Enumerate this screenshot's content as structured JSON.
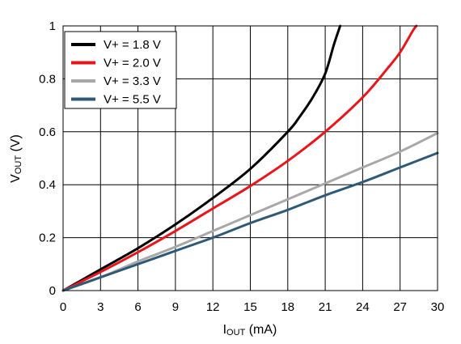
{
  "chart_data": {
    "type": "line",
    "xlabel": {
      "main": "I",
      "sub": "OUT",
      "unit": " (mA)"
    },
    "ylabel": {
      "main": "V",
      "sub": "OUT",
      "unit": " (V)"
    },
    "xlim": [
      0,
      30
    ],
    "ylim": [
      0,
      1
    ],
    "xticks": [
      0,
      3,
      6,
      9,
      12,
      15,
      18,
      21,
      24,
      27,
      30
    ],
    "yticks": [
      0,
      0.2,
      0.4,
      0.6,
      0.8,
      1
    ],
    "ytick_labels": [
      "0",
      "0.2",
      "0.4",
      "0.6",
      "0.8",
      "1"
    ],
    "grid": true,
    "legend_position": "top-left",
    "series": [
      {
        "name": "V+ = 1.8 V",
        "color": "#000000",
        "points": [
          [
            0,
            0
          ],
          [
            3,
            0.08
          ],
          [
            6,
            0.16
          ],
          [
            9,
            0.25
          ],
          [
            12,
            0.35
          ],
          [
            15,
            0.46
          ],
          [
            18,
            0.6
          ],
          [
            19,
            0.66
          ],
          [
            20,
            0.73
          ],
          [
            21,
            0.82
          ],
          [
            21.7,
            0.93
          ],
          [
            22.2,
            1.0
          ]
        ]
      },
      {
        "name": "V+ = 2.0 V",
        "color": "#e8161a",
        "points": [
          [
            0,
            0
          ],
          [
            3,
            0.07
          ],
          [
            6,
            0.145
          ],
          [
            9,
            0.225
          ],
          [
            12,
            0.31
          ],
          [
            15,
            0.395
          ],
          [
            18,
            0.49
          ],
          [
            21,
            0.6
          ],
          [
            24,
            0.73
          ],
          [
            26,
            0.84
          ],
          [
            27,
            0.9
          ],
          [
            28,
            0.98
          ],
          [
            28.3,
            1.0
          ]
        ]
      },
      {
        "name": "V+ = 3.3 V",
        "color": "#a8a8a8",
        "points": [
          [
            0,
            0
          ],
          [
            3,
            0.05
          ],
          [
            6,
            0.11
          ],
          [
            9,
            0.165
          ],
          [
            12,
            0.225
          ],
          [
            15,
            0.285
          ],
          [
            18,
            0.345
          ],
          [
            21,
            0.405
          ],
          [
            24,
            0.465
          ],
          [
            27,
            0.525
          ],
          [
            30,
            0.595
          ]
        ]
      },
      {
        "name": "V+ = 5.5 V",
        "color": "#2e5a78",
        "points": [
          [
            0,
            0
          ],
          [
            3,
            0.05
          ],
          [
            6,
            0.1
          ],
          [
            9,
            0.15
          ],
          [
            12,
            0.2
          ],
          [
            15,
            0.255
          ],
          [
            18,
            0.305
          ],
          [
            21,
            0.36
          ],
          [
            24,
            0.41
          ],
          [
            27,
            0.465
          ],
          [
            30,
            0.52
          ]
        ]
      }
    ]
  }
}
